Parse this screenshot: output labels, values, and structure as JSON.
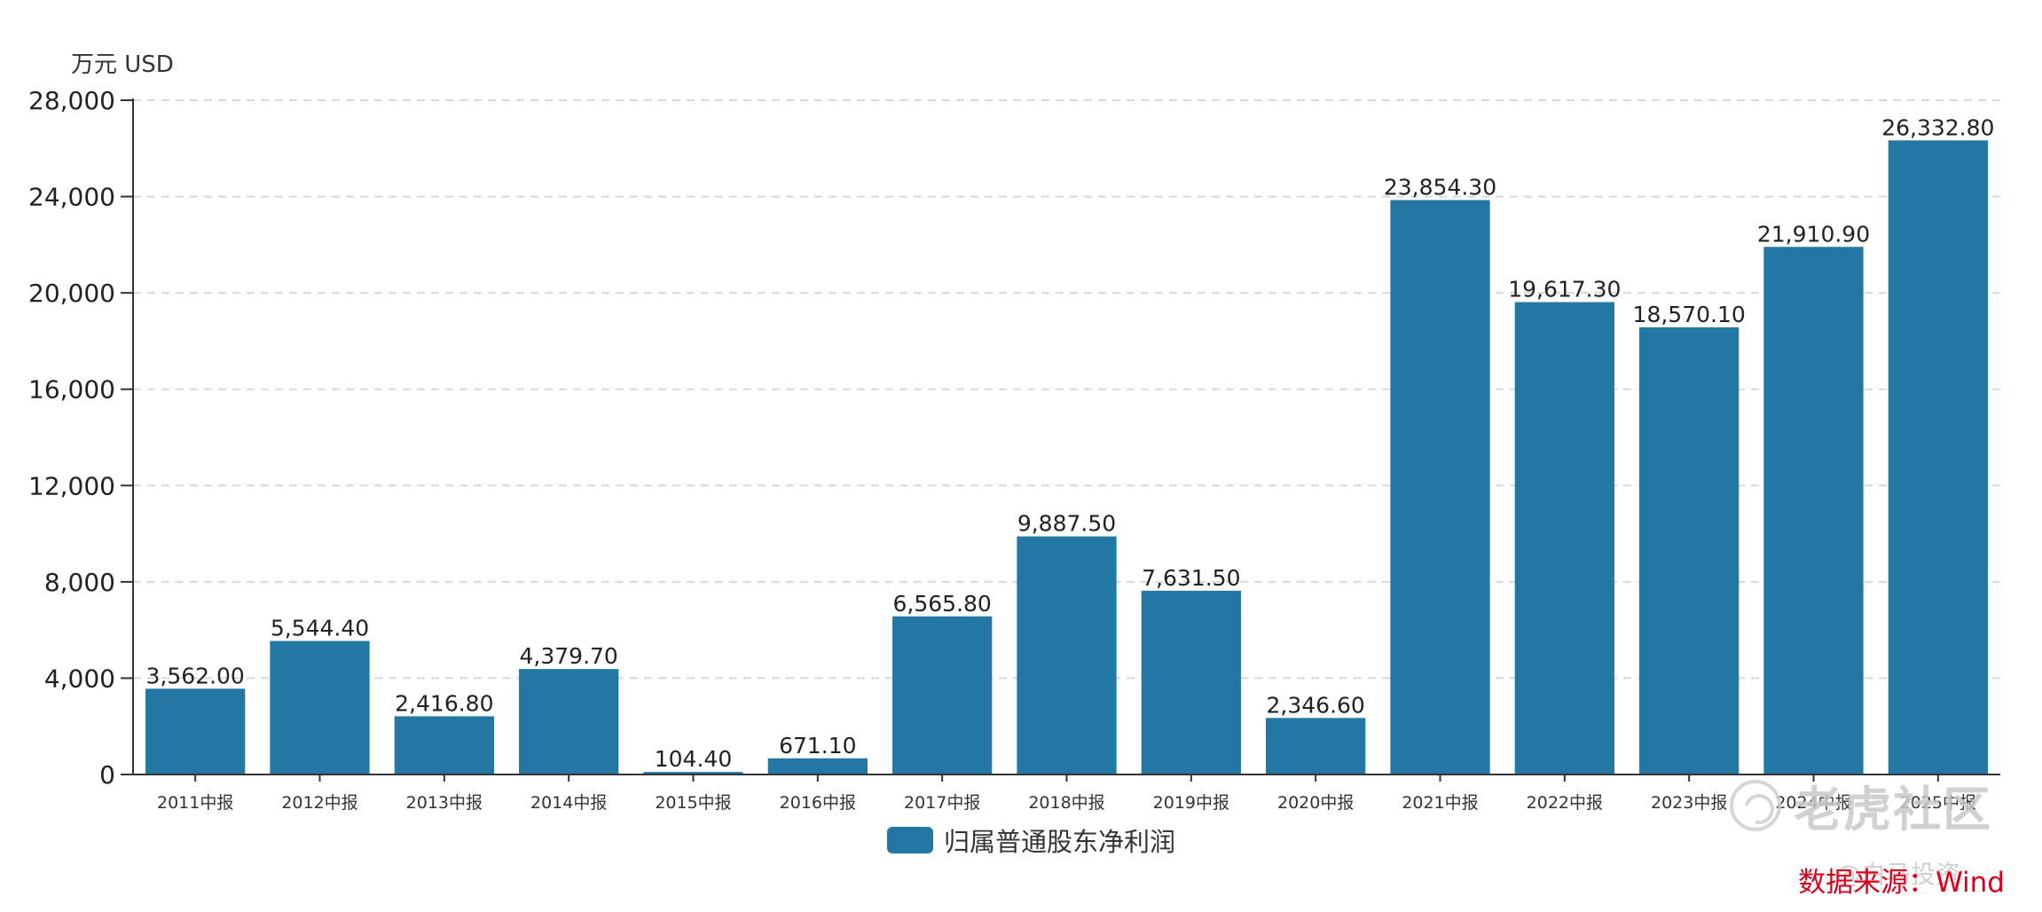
{
  "chart_data": {
    "type": "bar",
    "unit_label": "万元  USD",
    "categories": [
      "2011中报",
      "2012中报",
      "2013中报",
      "2014中报",
      "2015中报",
      "2016中报",
      "2017中报",
      "2018中报",
      "2019中报",
      "2020中报",
      "2021中报",
      "2022中报",
      "2023中报",
      "2024中报",
      "2025中报"
    ],
    "series": [
      {
        "name": "归属普通股东净利润",
        "color": "#2277a3",
        "values": [
          3562.0,
          5544.4,
          2416.8,
          4379.7,
          104.4,
          671.1,
          6565.8,
          9887.5,
          7631.5,
          2346.6,
          23854.3,
          19617.3,
          18570.1,
          21910.9,
          26332.8
        ],
        "labels": [
          "3,562.00",
          "5,544.40",
          "2,416.80",
          "4,379.70",
          "104.40",
          "671.10",
          "6,565.80",
          "9,887.50",
          "7,631.50",
          "2,346.60",
          "23,854.30",
          "19,617.30",
          "18,570.10",
          "21,910.90",
          "26,332.80"
        ]
      }
    ],
    "yticks": [
      "0",
      "4,000",
      "8,000",
      "12,000",
      "16,000",
      "20,000",
      "24,000",
      "28,000"
    ],
    "ylim": [
      0,
      28000
    ],
    "grid": true,
    "legend": "bottom-center",
    "source": "数据来源：Wind"
  },
  "watermark": {
    "text": "老虎社区",
    "user": "@白马投资"
  }
}
